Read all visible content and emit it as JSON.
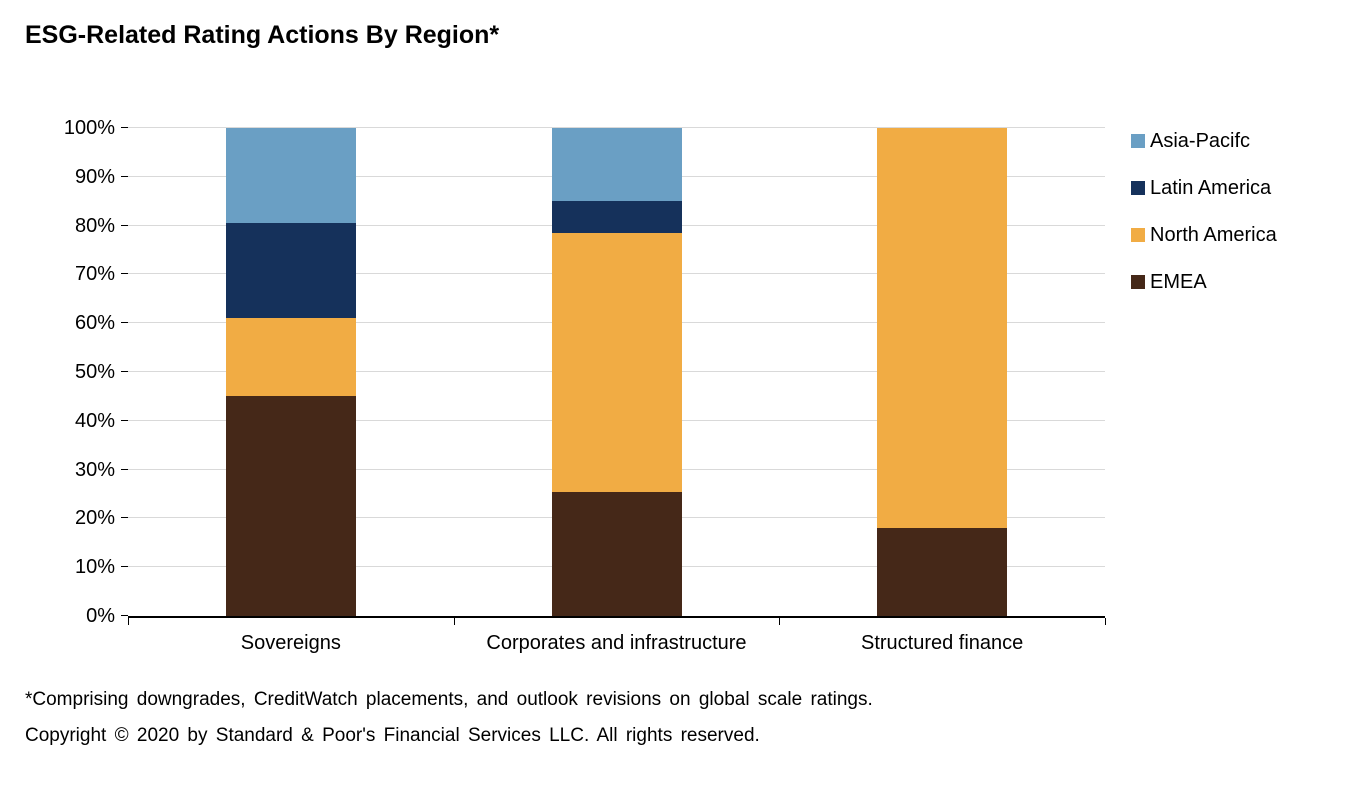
{
  "title": "ESG-Related Rating Actions By Region*",
  "footnotes": {
    "comprising": "*Comprising downgrades, CreditWatch placements, and outlook revisions on global scale ratings.",
    "copyright": "Copyright © 2020 by Standard & Poor's Financial Services LLC. All rights reserved."
  },
  "chart_data": {
    "type": "bar",
    "stacked": true,
    "units": "percent",
    "title": "ESG-Related Rating Actions By Region*",
    "categories": [
      "Sovereigns",
      "Corporates and infrastructure",
      "Structured finance"
    ],
    "series": [
      {
        "name": "EMEA",
        "color": "#452818",
        "values": [
          45,
          25.5,
          18
        ]
      },
      {
        "name": "North America",
        "color": "#F1AC44",
        "values": [
          16,
          53,
          82
        ]
      },
      {
        "name": "Latin America",
        "color": "#15315B",
        "values": [
          19.5,
          6.5,
          0
        ]
      },
      {
        "name": "Asia-Pacifc",
        "color": "#6A9FC4",
        "values": [
          19.5,
          15,
          0
        ]
      }
    ],
    "ylim": [
      0,
      100
    ],
    "yticks": [
      "0%",
      "10%",
      "20%",
      "30%",
      "40%",
      "50%",
      "60%",
      "70%",
      "80%",
      "90%",
      "100%"
    ],
    "grid": true,
    "legend_position": "right",
    "legend_order": [
      "Asia-Pacifc",
      "Latin America",
      "North America",
      "EMEA"
    ]
  }
}
